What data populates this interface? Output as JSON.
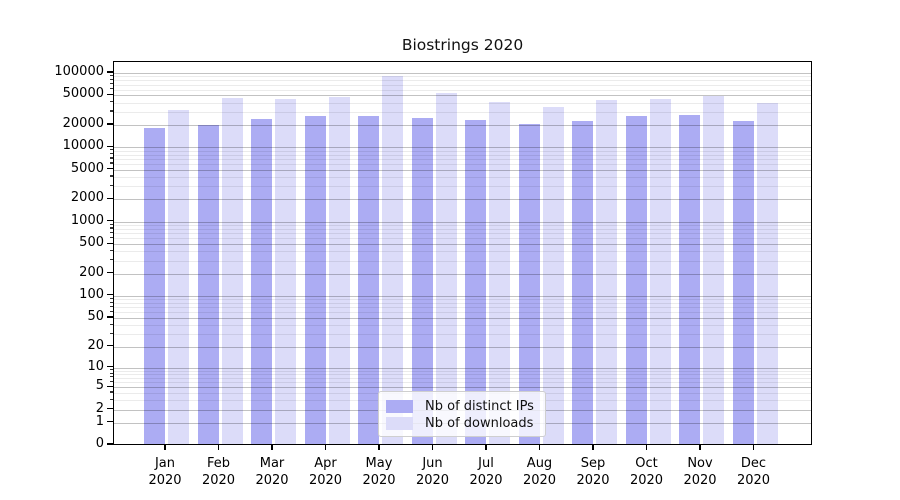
{
  "chart_data": {
    "type": "bar",
    "title": "Biostrings 2020",
    "y_scale": "log1p",
    "grid": true,
    "legend_position": "lower-center",
    "months": [
      "Jan",
      "Feb",
      "Mar",
      "Apr",
      "May",
      "Jun",
      "Jul",
      "Aug",
      "Sep",
      "Oct",
      "Nov",
      "Dec"
    ],
    "year": "2020",
    "series": [
      {
        "name": "Nb of distinct IPs",
        "key": "distinct-ips",
        "color": "#acacf3",
        "values": [
          17000,
          18800,
          22600,
          25100,
          25100,
          23100,
          22000,
          19400,
          21300,
          24900,
          25700,
          21300
        ]
      },
      {
        "name": "Nb of downloads",
        "key": "downloads",
        "color": "#dcdcf9",
        "values": [
          30000,
          43000,
          42000,
          45000,
          85000,
          50300,
          38300,
          32800,
          40800,
          42100,
          46300,
          37100
        ]
      }
    ],
    "y_ticks": [
      0,
      1,
      2,
      5,
      10,
      20,
      50,
      100,
      200,
      500,
      1000,
      2000,
      5000,
      10000,
      20000,
      50000,
      100000
    ],
    "y_minor_ticks": [
      3,
      4,
      6,
      7,
      8,
      9,
      30,
      40,
      60,
      70,
      80,
      90,
      300,
      400,
      600,
      700,
      800,
      900,
      3000,
      4000,
      6000,
      7000,
      8000,
      9000,
      30000,
      40000,
      60000,
      70000,
      80000,
      90000
    ],
    "ylim": [
      0,
      140000
    ]
  }
}
